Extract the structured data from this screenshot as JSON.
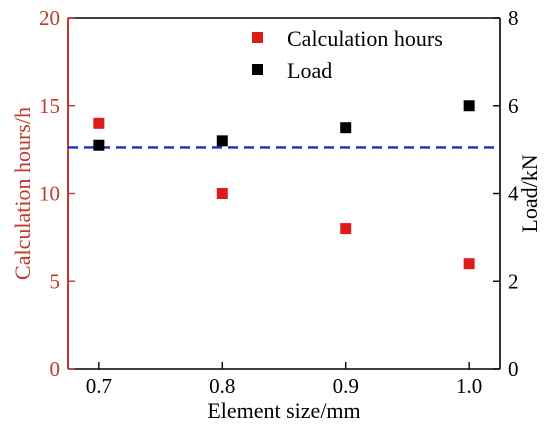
{
  "chart_data": {
    "type": "scatter",
    "title": "",
    "xlabel": "Element size/mm",
    "ylabel_left": "Calculation hours/h",
    "ylabel_right": "Load/kN",
    "xlim": [
      0.675,
      1.025
    ],
    "ylim_left": [
      0,
      20
    ],
    "ylim_right": [
      0,
      8
    ],
    "x_ticks": [
      0.7,
      0.8,
      0.9,
      1.0
    ],
    "x_tick_labels": [
      "0.7",
      "0.8",
      "0.9",
      "1.0"
    ],
    "y_left_ticks": [
      0,
      5,
      10,
      15,
      20
    ],
    "y_left_tick_labels": [
      "0",
      "5",
      "10",
      "15",
      "20"
    ],
    "y_right_ticks": [
      0,
      2,
      4,
      6,
      8
    ],
    "y_right_tick_labels": [
      "0",
      "2",
      "4",
      "6",
      "8"
    ],
    "grid": false,
    "legend_position": "top-right",
    "series": [
      {
        "name": "Calculation hours",
        "axis": "left",
        "color": "#dd1c1a",
        "x": [
          0.7,
          0.8,
          0.9,
          1.0
        ],
        "y": [
          14,
          10,
          8,
          6
        ]
      },
      {
        "name": "Load",
        "axis": "right",
        "color": "#000000",
        "x": [
          0.7,
          0.8,
          0.9,
          1.0
        ],
        "y": [
          5.1,
          5.2,
          5.5,
          6.0
        ]
      }
    ],
    "reference_line": {
      "axis": "right",
      "value": 5.05,
      "style": "dashed",
      "color": "#1f2bcc"
    },
    "left_axis_color": "#c0392b"
  }
}
